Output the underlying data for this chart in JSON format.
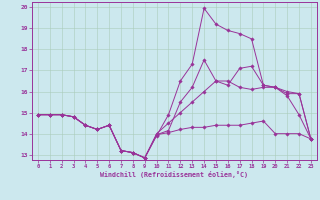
{
  "title": "",
  "xlabel": "Windchill (Refroidissement éolien,°C)",
  "bg_color": "#cce8ee",
  "grid_color": "#aaccbb",
  "line_color": "#993399",
  "xlim_min": -0.5,
  "xlim_max": 23.5,
  "ylim_min": 12.75,
  "ylim_max": 20.25,
  "xticks": [
    0,
    1,
    2,
    3,
    4,
    5,
    6,
    7,
    8,
    9,
    10,
    11,
    12,
    13,
    14,
    15,
    16,
    17,
    18,
    19,
    20,
    21,
    22,
    23
  ],
  "yticks": [
    13,
    14,
    15,
    16,
    17,
    18,
    19,
    20
  ],
  "series": [
    {
      "x": [
        0,
        1,
        2,
        3,
        4,
        5,
        6,
        7,
        8,
        9,
        10,
        11,
        12,
        13,
        14,
        15,
        16,
        17,
        18,
        19,
        20,
        21,
        22,
        23
      ],
      "y": [
        14.9,
        14.9,
        14.9,
        14.8,
        14.4,
        14.2,
        14.4,
        13.2,
        13.1,
        12.85,
        13.9,
        14.9,
        16.5,
        17.3,
        19.95,
        19.2,
        18.9,
        18.75,
        18.5,
        16.3,
        16.2,
        15.8,
        14.9,
        13.75
      ]
    },
    {
      "x": [
        0,
        1,
        2,
        3,
        4,
        5,
        6,
        7,
        8,
        9,
        10,
        11,
        12,
        13,
        14,
        15,
        16,
        17,
        18,
        19,
        20,
        21,
        22,
        23
      ],
      "y": [
        14.9,
        14.9,
        14.9,
        14.8,
        14.4,
        14.2,
        14.4,
        13.2,
        13.1,
        12.85,
        13.95,
        14.05,
        14.2,
        14.3,
        14.3,
        14.4,
        14.4,
        14.4,
        14.5,
        14.6,
        14.0,
        14.0,
        14.0,
        13.75
      ]
    },
    {
      "x": [
        0,
        1,
        2,
        3,
        4,
        5,
        6,
        7,
        8,
        9,
        10,
        11,
        12,
        13,
        14,
        15,
        16,
        17,
        18,
        19,
        20,
        21,
        22,
        23
      ],
      "y": [
        14.9,
        14.9,
        14.9,
        14.8,
        14.4,
        14.2,
        14.4,
        13.2,
        13.1,
        12.85,
        14.0,
        14.5,
        15.0,
        15.5,
        16.0,
        16.5,
        16.5,
        16.2,
        16.1,
        16.2,
        16.2,
        16.0,
        15.9,
        13.75
      ]
    },
    {
      "x": [
        0,
        1,
        2,
        3,
        4,
        5,
        6,
        7,
        8,
        9,
        10,
        11,
        12,
        13,
        14,
        15,
        16,
        17,
        18,
        19,
        20,
        21,
        22,
        23
      ],
      "y": [
        14.9,
        14.9,
        14.9,
        14.8,
        14.4,
        14.2,
        14.4,
        13.2,
        13.1,
        12.85,
        13.95,
        14.15,
        15.5,
        16.2,
        17.5,
        16.5,
        16.3,
        17.1,
        17.2,
        16.3,
        16.2,
        15.9,
        15.9,
        13.75
      ]
    }
  ]
}
